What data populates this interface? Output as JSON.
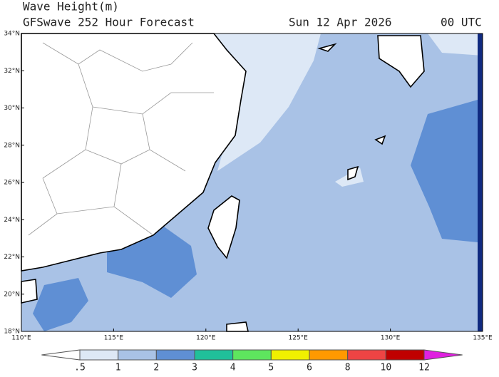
{
  "header": {
    "title": "Wave Height(m)",
    "subtitle": "GFSwave 252 Hour Forecast",
    "date": "Sun 12 Apr 2026",
    "time": "00 UTC"
  },
  "map": {
    "lon_range": [
      110,
      135
    ],
    "lat_range": [
      18,
      34
    ],
    "lon_ticks": [
      {
        "value": 110,
        "label": "110°E"
      },
      {
        "value": 115,
        "label": "115°E"
      },
      {
        "value": 120,
        "label": "120°E"
      },
      {
        "value": 125,
        "label": "125°E"
      },
      {
        "value": 130,
        "label": "130°E"
      },
      {
        "value": 135,
        "label": "135°E"
      }
    ],
    "lat_ticks": [
      {
        "value": 18,
        "label": "18°N"
      },
      {
        "value": 20,
        "label": "20°N"
      },
      {
        "value": 22,
        "label": "22°N"
      },
      {
        "value": 24,
        "label": "24°N"
      },
      {
        "value": 26,
        "label": "26°N"
      },
      {
        "value": 28,
        "label": "28°N"
      },
      {
        "value": 30,
        "label": "30°N"
      },
      {
        "value": 32,
        "label": "32°N"
      },
      {
        "value": 34,
        "label": "34°N"
      }
    ]
  },
  "colorbar": {
    "levels": [
      {
        "value": 0.5,
        "label": ".5"
      },
      1,
      2,
      3,
      4,
      5,
      6,
      8,
      10,
      12
    ],
    "colors": [
      "#ffffff",
      "#dde8f6",
      "#a9c2e6",
      "#5f8fd4",
      "#20c09a",
      "#5ee55e",
      "#f0f000",
      "#ff9900",
      "#ee4444",
      "#c00000",
      "#e020e0"
    ]
  }
}
